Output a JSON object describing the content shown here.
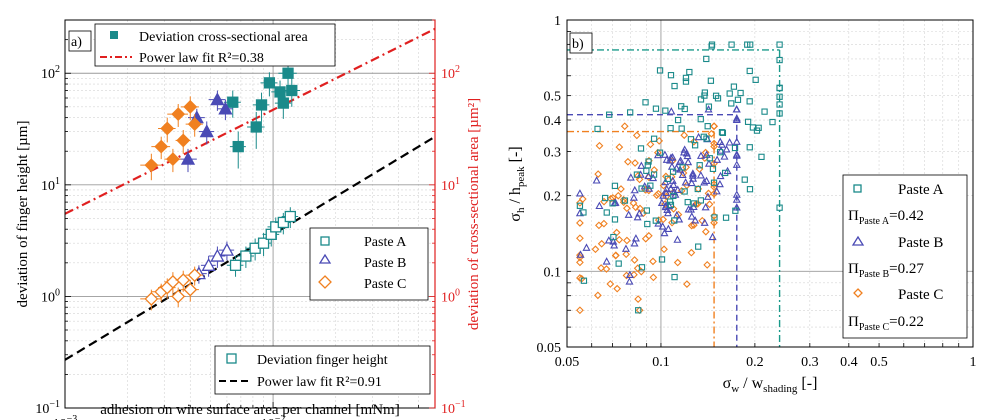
{
  "chart_data": [
    {
      "type": "scatter",
      "panel_label": "a)",
      "xscale": "log",
      "yscale": "log",
      "xlim": [
        0.001,
        0.06
      ],
      "ylim_left": [
        0.1,
        300
      ],
      "ylim_right": [
        0.1,
        300
      ],
      "xlabel": "adhesion on wire surface area per channel [mNm]",
      "ylabel": "deviation of finger height [µm]",
      "ylabel_right": "deviation of cross-sectional area [µm²]",
      "x_ticks": [
        {
          "v": 0.001,
          "b": "10",
          "e": "−3"
        },
        {
          "v": 0.01,
          "b": "10",
          "e": "−2"
        }
      ],
      "y_ticks": [
        {
          "v": 0.1,
          "b": "10",
          "e": "−1"
        },
        {
          "v": 1,
          "b": "10",
          "e": "0"
        },
        {
          "v": 10,
          "b": "10",
          "e": "1"
        },
        {
          "v": 100,
          "b": "10",
          "e": "2"
        }
      ],
      "grid": true,
      "legends": {
        "top": [
          {
            "marker": "filled-square",
            "label": "Deviation cross-sectional area"
          },
          {
            "marker": "red-dashdot",
            "label": "Power law fit R²=0.38"
          }
        ],
        "middle": [
          {
            "marker": "open-square",
            "label": "Paste A"
          },
          {
            "marker": "open-triangle",
            "label": "Paste B"
          },
          {
            "marker": "open-diamond",
            "label": "Paste C"
          }
        ],
        "bottom": [
          {
            "marker": "open-square",
            "label": "Deviation finger height"
          },
          {
            "marker": "black-dashed",
            "label": "Power law fit R²=0.91"
          }
        ]
      },
      "fits": [
        {
          "name": "Power law fit R²=0.38",
          "color": "#e02020",
          "style": "dashdot",
          "x": [
            0.001,
            0.06
          ],
          "y": [
            5.5,
            250
          ]
        },
        {
          "name": "Power law fit R²=0.91",
          "color": "#000000",
          "style": "dashed",
          "x": [
            0.001,
            0.06
          ],
          "y": [
            0.27,
            27
          ]
        }
      ],
      "series": [
        {
          "name": "Paste A",
          "quantity": "cross-sectional area",
          "marker": "filled-square",
          "color": "#1a8a8a",
          "points": [
            [
              0.0064,
              55,
              0.0006,
              15
            ],
            [
              0.0068,
              22,
              0.0006,
              8
            ],
            [
              0.0083,
              33,
              0.0008,
              12
            ],
            [
              0.0088,
              52,
              0.0008,
              15
            ],
            [
              0.0096,
              82,
              0.0009,
              20
            ],
            [
              0.0108,
              68,
              0.001,
              18
            ],
            [
              0.0112,
              54,
              0.001,
              15
            ],
            [
              0.0118,
              100,
              0.0012,
              25
            ],
            [
              0.0123,
              70,
              0.0012,
              20
            ]
          ]
        },
        {
          "name": "Paste B",
          "quantity": "cross-sectional area",
          "marker": "filled-triangle",
          "color": "#4a4ab5",
          "points": [
            [
              0.0039,
              17,
              0.0004,
              4
            ],
            [
              0.0043,
              40,
              0.0004,
              8
            ],
            [
              0.0048,
              30,
              0.0004,
              7
            ],
            [
              0.0054,
              58,
              0.0005,
              12
            ],
            [
              0.0059,
              48,
              0.0005,
              10
            ]
          ]
        },
        {
          "name": "Paste C",
          "quantity": "cross-sectional area",
          "marker": "filled-diamond",
          "color": "#f08020",
          "points": [
            [
              0.0026,
              15,
              0.0003,
              4
            ],
            [
              0.0029,
              22,
              0.0003,
              5
            ],
            [
              0.0031,
              32,
              0.0003,
              8
            ],
            [
              0.0033,
              17,
              0.0003,
              4
            ],
            [
              0.0035,
              43,
              0.0004,
              10
            ],
            [
              0.0037,
              25,
              0.0003,
              6
            ],
            [
              0.004,
              50,
              0.0004,
              12
            ],
            [
              0.0042,
              35,
              0.0004,
              8
            ]
          ]
        },
        {
          "name": "Paste A",
          "quantity": "finger height",
          "marker": "open-square",
          "color": "#1a8a8a",
          "points": [
            [
              0.0066,
              1.9,
              0.0006,
              0.4
            ],
            [
              0.0074,
              2.3,
              0.0007,
              0.5
            ],
            [
              0.0082,
              2.7,
              0.0008,
              0.6
            ],
            [
              0.009,
              3.0,
              0.0008,
              0.7
            ],
            [
              0.0098,
              3.6,
              0.0009,
              0.8
            ],
            [
              0.0103,
              4.2,
              0.0009,
              0.9
            ],
            [
              0.0112,
              4.6,
              0.001,
              1.0
            ],
            [
              0.0121,
              5.2,
              0.0011,
              1.1
            ]
          ]
        },
        {
          "name": "Paste B",
          "quantity": "finger height",
          "marker": "open-triangle",
          "color": "#4a4ab5",
          "points": [
            [
              0.0044,
              1.6,
              0.0004,
              0.3
            ],
            [
              0.0049,
              1.9,
              0.0004,
              0.4
            ],
            [
              0.0054,
              2.3,
              0.0005,
              0.5
            ],
            [
              0.006,
              2.6,
              0.0005,
              0.5
            ]
          ]
        },
        {
          "name": "Paste C",
          "quantity": "finger height",
          "marker": "open-diamond",
          "color": "#f08020",
          "points": [
            [
              0.0026,
              0.95,
              0.0003,
              0.2
            ],
            [
              0.0029,
              1.1,
              0.0003,
              0.2
            ],
            [
              0.0031,
              1.2,
              0.0003,
              0.25
            ],
            [
              0.0033,
              1.35,
              0.0003,
              0.3
            ],
            [
              0.0035,
              1.0,
              0.0003,
              0.2
            ],
            [
              0.0037,
              1.4,
              0.0003,
              0.3
            ],
            [
              0.004,
              1.15,
              0.0004,
              0.25
            ],
            [
              0.0042,
              1.55,
              0.0004,
              0.3
            ]
          ]
        }
      ]
    },
    {
      "type": "scatter",
      "panel_label": "b)",
      "xscale": "log",
      "yscale": "log",
      "xlim": [
        0.05,
        1
      ],
      "ylim": [
        0.05,
        1
      ],
      "xlabel": {
        "main": "σ",
        "sub": "w",
        "rest": " / w",
        "sub2": "shading",
        "tail": " [-]"
      },
      "ylabel": {
        "main": "σ",
        "sub": "h",
        "rest": " / h",
        "sub2": "peak",
        "tail": " [-]"
      },
      "x_ticks": [
        "0.05",
        "0.1",
        "0.2",
        "0.3",
        "0.4",
        "0.5",
        "1"
      ],
      "x_tick_values": [
        0.05,
        0.1,
        0.2,
        0.3,
        0.4,
        0.5,
        1
      ],
      "y_ticks": [
        "0.05",
        "0.1",
        "0.2",
        "0.3",
        "0.4",
        "0.5",
        "1"
      ],
      "y_tick_values": [
        0.05,
        0.1,
        0.2,
        0.3,
        0.4,
        0.5,
        1
      ],
      "grid": true,
      "legend": [
        {
          "marker": "open-square",
          "label": "Paste A",
          "color": "#1a8a8a"
        },
        {
          "pi_sub": "Paste A",
          "pi_value": "=0.42"
        },
        {
          "marker": "open-triangle",
          "label": "Paste B",
          "color": "#4a4ab5"
        },
        {
          "pi_sub": "Paste B",
          "pi_value": "=0.27"
        },
        {
          "marker": "open-diamond",
          "label": "Paste C",
          "color": "#f08020"
        },
        {
          "pi_sub": "Paste C",
          "pi_value": "=0.22"
        }
      ],
      "pi_symbol": "Π",
      "thresholds": [
        {
          "name": "Paste A",
          "x": 0.24,
          "y": 0.76,
          "color": "#1a9a8a",
          "style": "dashdot"
        },
        {
          "name": "Paste B",
          "x": 0.175,
          "y": 0.42,
          "color": "#4a4ab5",
          "style": "dashed"
        },
        {
          "name": "Paste C",
          "x": 0.148,
          "y": 0.36,
          "color": "#f08020",
          "style": "dashdot"
        }
      ],
      "series": [
        {
          "name": "Paste A",
          "marker": "open-square",
          "color": "#1a8a8a",
          "count": 115,
          "x_center": 0.13,
          "y_center": 0.32,
          "x_spread": 0.33,
          "y_spread": 0.31
        },
        {
          "name": "Paste B",
          "marker": "open-triangle",
          "color": "#4a4ab5",
          "count": 115,
          "x_center": 0.11,
          "y_center": 0.22,
          "x_spread": 0.25,
          "y_spread": 0.22
        },
        {
          "name": "Paste C",
          "marker": "open-diamond",
          "color": "#f08020",
          "count": 115,
          "x_center": 0.095,
          "y_center": 0.17,
          "x_spread": 0.27,
          "y_spread": 0.28
        }
      ]
    }
  ]
}
